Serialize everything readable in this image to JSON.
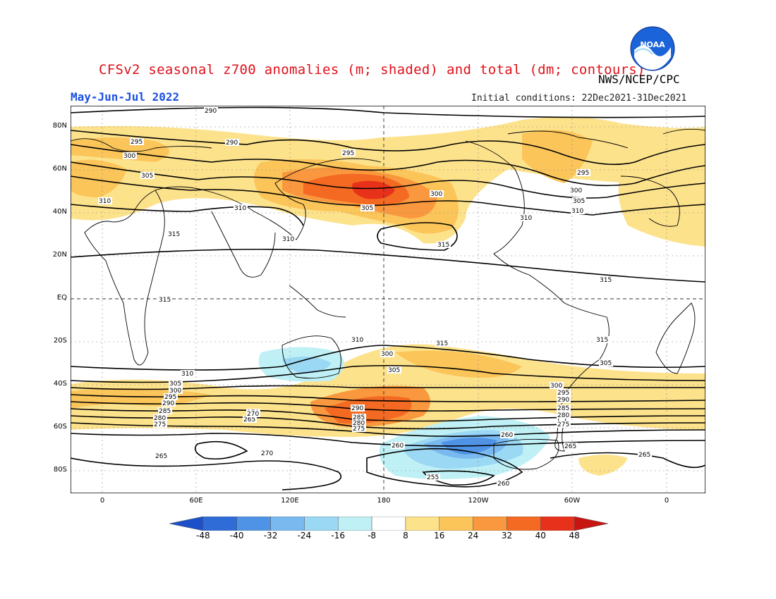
{
  "header": {
    "title": "CFSv2 seasonal z700 anomalies (m; shaded) and total (dm; contours)",
    "agency": "NWS/NCEP/CPC",
    "logo_text": "NOAA",
    "period": "May-Jun-Jul 2022",
    "initial_conditions": "Initial conditions: 22Dec2021-31Dec2021"
  },
  "map": {
    "lat_labels": [
      "80N",
      "60N",
      "40N",
      "20N",
      "EQ",
      "20S",
      "40S",
      "60S",
      "80S"
    ],
    "lon_labels": [
      "0",
      "60E",
      "120E",
      "180",
      "120W",
      "60W",
      "0"
    ],
    "contour_labels": [
      "290",
      "295",
      "300",
      "305",
      "310",
      "315",
      "295",
      "290",
      "300",
      "305",
      "295",
      "300",
      "305",
      "310",
      "310",
      "310",
      "315",
      "310",
      "315",
      "315",
      "315",
      "315",
      "310",
      "305",
      "300",
      "310",
      "305",
      "300",
      "295",
      "290",
      "285",
      "280",
      "275",
      "270",
      "265",
      "305",
      "300",
      "295",
      "290",
      "285",
      "280",
      "275",
      "270",
      "265",
      "260",
      "255",
      "260",
      "270",
      "260",
      "265",
      "290",
      "285",
      "280",
      "275",
      "265"
    ],
    "anomaly_colors": {
      "pos8": "#fde28c",
      "pos16": "#fbc55a",
      "pos24": "#f9983e",
      "pos32": "#f46a22",
      "pos40": "#e8311a",
      "pos48": "#c81512",
      "neg8": "#bff0f5",
      "neg16": "#9ad8f4",
      "neg24": "#7ab9ef",
      "neg32": "#4f93e6",
      "neg40": "#2f6cd8",
      "neg48": "#1d4fc9"
    }
  },
  "colorbar": {
    "ticks": [
      "-48",
      "-40",
      "-32",
      "-24",
      "-16",
      "-8",
      "8",
      "16",
      "24",
      "32",
      "40",
      "48"
    ],
    "colors": [
      "#1d4fc9",
      "#2f6cd8",
      "#4f93e6",
      "#7ab9ef",
      "#9ad8f4",
      "#bff0f5",
      "#ffffff",
      "#fde28c",
      "#fbc55a",
      "#f9983e",
      "#f46a22",
      "#e8311a",
      "#c81512"
    ]
  }
}
